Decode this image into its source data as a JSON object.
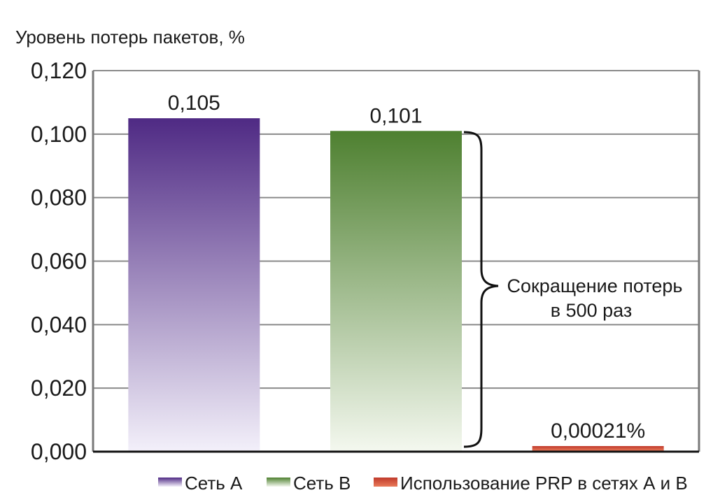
{
  "chart_data": {
    "type": "bar",
    "ylabel": "Уровень потерь пакетов, %",
    "ylim": [
      0,
      0.12
    ],
    "yticks": [
      "0,000",
      "0,020",
      "0,040",
      "0,060",
      "0,080",
      "0,100",
      "0,120"
    ],
    "grid": true,
    "legend_position": "bottom-right",
    "series": [
      {
        "name": "Сеть А",
        "value": 0.105,
        "label": "0,105",
        "color": "#4f2a84",
        "fade": "#f3f0fa"
      },
      {
        "name": "Сеть В",
        "value": 0.101,
        "label": "0,101",
        "color": "#4e8030",
        "fade": "#f4f8ef"
      },
      {
        "name": "Использование PRP в сетях А и В",
        "value": 0.00021,
        "label": "0,00021%",
        "color": "#c0392b",
        "fade": "#e97a5a"
      }
    ],
    "annotation": {
      "line1": "Сокращение потерь",
      "line2": "в 500 раз"
    }
  }
}
